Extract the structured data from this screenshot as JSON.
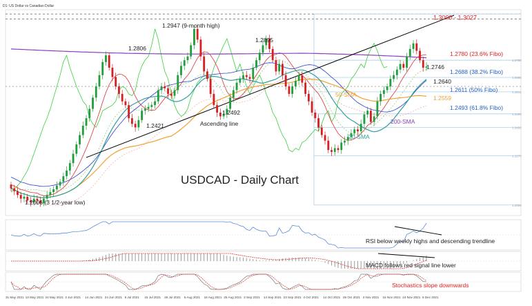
{
  "header": {
    "symbol_title": "D1: US Dollar vs Canadian Dollar"
  },
  "chart_data": {
    "type": "candlestick",
    "title": "USDCAD - Daily Chart",
    "x_tick_labels": [
      "31 May 2021",
      "13 May 2021",
      "24 May 2021",
      "3 Jun 2021",
      "14 Jun 2021",
      "24 Jun 2021",
      "5 Jul 2021",
      "15 Jul 2021",
      "26 Jul 2021",
      "5 Aug 2021",
      "16 Aug 2021",
      "25 Aug 2021",
      "3 Sep 2021",
      "14 Sep 2021",
      "23 Sep 2021",
      "4 Oct 2021",
      "14 Oct 2021",
      "26 Oct 2021",
      "4 Nov 2021",
      "16 Nov 2021",
      "24 Nov 2021",
      "6 Dec 2021"
    ],
    "price_range": [
      1.195,
      1.305
    ],
    "close_series": [
      1.2095,
      1.208,
      1.206,
      1.204,
      1.205,
      1.203,
      1.202,
      1.204,
      1.203,
      1.2015,
      1.204,
      1.206,
      1.2075,
      1.209,
      1.211,
      1.213,
      1.216,
      1.219,
      1.223,
      1.228,
      1.233,
      1.238,
      1.243,
      1.247,
      1.252,
      1.258,
      1.264,
      1.27,
      1.277,
      1.2806,
      1.274,
      1.269,
      1.264,
      1.26,
      1.256,
      1.254,
      1.247,
      1.244,
      1.2421,
      1.246,
      1.251,
      1.252,
      1.253,
      1.254,
      1.256,
      1.262,
      1.264,
      1.263,
      1.26,
      1.259,
      1.262,
      1.27,
      1.275,
      1.278,
      1.28,
      1.286,
      1.2947,
      1.289,
      1.28,
      1.272,
      1.268,
      1.26,
      1.254,
      1.25,
      1.248,
      1.2492,
      1.252,
      1.258,
      1.262,
      1.266,
      1.268,
      1.27,
      1.269,
      1.268,
      1.274,
      1.278,
      1.282,
      1.286,
      1.2895,
      1.284,
      1.278,
      1.272,
      1.276,
      1.27,
      1.264,
      1.26,
      1.264,
      1.267,
      1.27,
      1.266,
      1.26,
      1.256,
      1.25,
      1.247,
      1.242,
      1.238,
      1.235,
      1.23,
      1.229,
      1.231,
      1.23,
      1.234,
      1.235,
      1.237,
      1.239,
      1.241,
      1.24,
      1.244,
      1.249,
      1.251,
      1.245,
      1.248,
      1.256,
      1.26,
      1.262,
      1.264,
      1.268,
      1.27,
      1.273,
      1.276,
      1.274,
      1.28,
      1.284,
      1.287,
      1.283,
      1.278,
      1.274,
      1.2746
    ],
    "series": [
      {
        "name": "20-SMA",
        "color": "#2e9e9e"
      },
      {
        "name": "50-SMA",
        "color": "#f0a030"
      },
      {
        "name": "200-SMA",
        "color": "#8a3fbf"
      },
      {
        "name": "Ascending line",
        "color": "#000000"
      }
    ],
    "fibonacci_levels": [
      {
        "label": "1.2780 (23.6% Fibo)",
        "value": 1.278,
        "color": "#e02020"
      },
      {
        "label": "1.2688 (38.2% Fibo)",
        "value": 1.2688,
        "color": "#1f5fc8"
      },
      {
        "label": "1.2611 (50% Fibo)",
        "value": 1.2611,
        "color": "#1f5fc8"
      },
      {
        "label": "1.2493 (61.8% Fibo)",
        "value": 1.2493,
        "color": "#1f5fc8"
      }
    ],
    "annotations": [
      {
        "text": "1.3000 - 1.3027",
        "value": 1.3,
        "color": "#e02020"
      },
      {
        "text": "1.2947 (9-month high)",
        "value": 1.2947
      },
      {
        "text": "1.2895",
        "value": 1.2895
      },
      {
        "text": "1.2806",
        "value": 1.2806
      },
      {
        "text": "1.2746",
        "value": 1.2746
      },
      {
        "text": "1.2640",
        "value": 1.264
      },
      {
        "text": "1.2559",
        "value": 1.2559,
        "color": "#f0a030"
      },
      {
        "text": "1.2492",
        "value": 1.2492
      },
      {
        "text": "1.2421",
        "value": 1.2421
      },
      {
        "text": "1.2006 (3 1/2-year low)",
        "value": 1.2006
      },
      {
        "text": "Ascending line"
      },
      {
        "text": "50-SMA",
        "color": "#f0a030"
      },
      {
        "text": "20-SMA",
        "color": "#2e9e9e"
      },
      {
        "text": "200-SMA",
        "color": "#8a3fbf"
      }
    ],
    "subpanels": [
      {
        "name": "RSI",
        "note": "RSI below weekly highs and descending trendline"
      },
      {
        "name": "MACD",
        "note": "MACD follows red signal line lower"
      },
      {
        "name": "Stochastics",
        "note": "Stochastics slope downwards",
        "note_color": "#e02020"
      }
    ]
  }
}
